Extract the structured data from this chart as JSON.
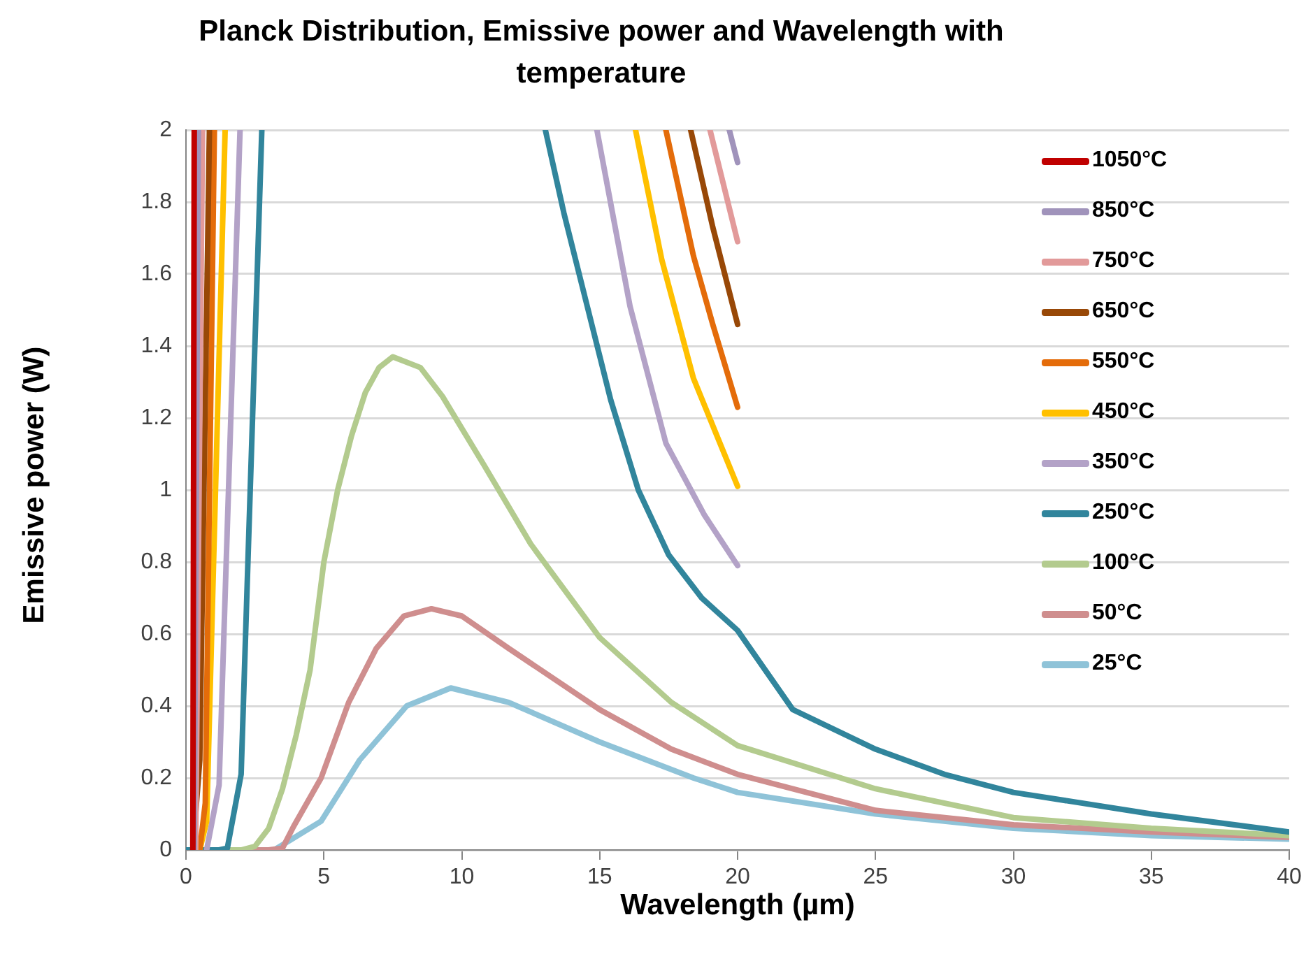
{
  "chart_data": {
    "type": "line",
    "title": "Planck Distribution, Emissive power and Wavelength with temperature",
    "xlabel": "Wavelength (µm)",
    "ylabel": "Emissive power (W)",
    "xlim": [
      0,
      40
    ],
    "ylim": [
      0,
      2
    ],
    "xticks": [
      0,
      5,
      10,
      15,
      20,
      25,
      30,
      35,
      40
    ],
    "yticks": [
      0,
      0.2,
      0.4,
      0.6,
      0.8,
      1,
      1.2,
      1.4,
      1.6,
      1.8,
      2
    ],
    "grid": "y",
    "legend": "top right",
    "marker": "none",
    "line_style": "solid",
    "series": [
      {
        "name": "1050°C",
        "color": "#c00000",
        "x": [
          0.25,
          0.3
        ],
        "values": [
          0,
          2
        ]
      },
      {
        "name": "850°C",
        "color": "#a093bb",
        "x": [
          0.3,
          0.45,
          10,
          19.7,
          20
        ],
        "values": [
          0,
          2,
          null,
          2,
          1.91
        ]
      },
      {
        "name": "750°C",
        "color": "#e29a9a",
        "x": [
          0.35,
          0.6,
          10,
          19,
          20
        ],
        "values": [
          0,
          2,
          null,
          2,
          1.69
        ]
      },
      {
        "name": "650°C",
        "color": "#984807",
        "x": [
          0.25,
          0.5,
          0.85,
          10,
          18.3,
          19.1,
          20
        ],
        "values": [
          0,
          0.25,
          2,
          null,
          2,
          1.73,
          1.46
        ]
      },
      {
        "name": "550°C",
        "color": "#e46c0a",
        "x": [
          0.5,
          0.7,
          1.03,
          10,
          17.4,
          18.4,
          19.1,
          20
        ],
        "values": [
          0,
          0.13,
          2,
          null,
          2,
          1.65,
          1.46,
          1.23
        ]
      },
      {
        "name": "450°C",
        "color": "#ffc000",
        "x": [
          0.5,
          0.75,
          1.42,
          10,
          16.3,
          17.25,
          18.4,
          20
        ],
        "values": [
          0,
          0.08,
          2,
          null,
          2,
          1.64,
          1.31,
          1.01
        ]
      },
      {
        "name": "350°C",
        "color": "#b3a2c7",
        "x": [
          0.75,
          1.2,
          1.96,
          10,
          14.9,
          16.1,
          17.4,
          18.8,
          20
        ],
        "values": [
          0,
          0.18,
          2,
          null,
          2,
          1.51,
          1.13,
          0.93,
          0.79
        ]
      },
      {
        "name": "250°C",
        "color": "#31859c",
        "x": [
          0,
          1.2,
          1.5,
          2,
          2.3,
          2.75,
          8,
          13.03,
          13.7,
          14.55,
          15.4,
          16.4,
          17.5,
          18.7,
          20,
          22,
          25,
          27.5,
          30,
          35,
          40
        ],
        "values": [
          0,
          0,
          0.005,
          0.21,
          0.93,
          2,
          null,
          2,
          1.77,
          1.51,
          1.25,
          1,
          0.82,
          0.7,
          0.61,
          0.39,
          0.28,
          0.21,
          0.16,
          0.1,
          0.05
        ]
      },
      {
        "name": "100°C",
        "color": "#b3cb8e",
        "x": [
          0,
          2,
          2.5,
          3,
          3.5,
          4,
          4.5,
          5,
          5.5,
          6,
          6.5,
          7,
          7.5,
          8.5,
          9.3,
          10.8,
          12.5,
          15,
          17.6,
          20,
          25,
          30,
          35,
          40
        ],
        "values": [
          0,
          0,
          0.01,
          0.06,
          0.17,
          0.32,
          0.5,
          0.8,
          1,
          1.15,
          1.27,
          1.34,
          1.37,
          1.34,
          1.26,
          1.07,
          0.85,
          0.59,
          0.41,
          0.29,
          0.17,
          0.09,
          0.06,
          0.04
        ]
      },
      {
        "name": "50°C",
        "color": "#cf8e8e",
        "x": [
          0,
          3,
          3.5,
          3.9,
          4.9,
          5.9,
          6.9,
          7.9,
          8.9,
          10,
          11.7,
          15,
          17.6,
          20,
          25,
          30,
          35,
          40
        ],
        "values": [
          0,
          0,
          0.005,
          0.065,
          0.2,
          0.41,
          0.56,
          0.65,
          0.67,
          0.65,
          0.56,
          0.39,
          0.28,
          0.21,
          0.11,
          0.07,
          0.05,
          0.035
        ]
      },
      {
        "name": "25°C",
        "color": "#8fc3d8",
        "x": [
          0,
          3.2,
          4.9,
          6.3,
          8,
          9.6,
          11.7,
          15,
          18.4,
          20,
          25,
          30,
          35,
          40
        ],
        "values": [
          0,
          0,
          0.08,
          0.25,
          0.4,
          0.45,
          0.41,
          0.3,
          0.2,
          0.16,
          0.1,
          0.06,
          0.04,
          0.03
        ]
      }
    ]
  }
}
